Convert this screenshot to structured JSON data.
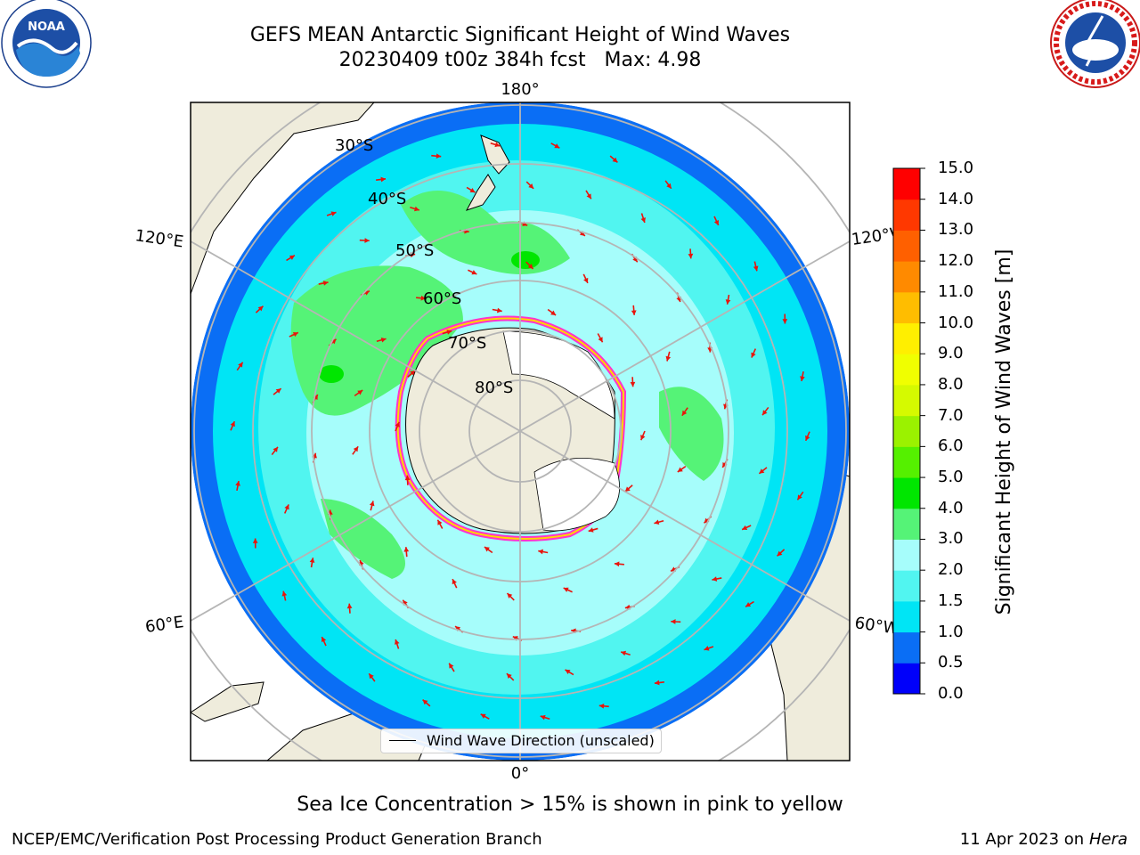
{
  "title": {
    "line1": "GEFS MEAN Antarctic Significant Height of Wind Waves",
    "line2": "20230409 t00z 384h fcst   Max: 4.98"
  },
  "logos": {
    "left": "NOAA",
    "right": "NATIONAL WEATHER SERVICE"
  },
  "map": {
    "longitude_labels": {
      "top": "180°",
      "bottom": "0°",
      "upper_left": "120°E",
      "upper_right": "120°W",
      "lower_left": "60°E",
      "lower_right": "60°W"
    },
    "latitude_labels": [
      "30°S",
      "40°S",
      "50°S",
      "60°S",
      "70°S",
      "80°S"
    ],
    "legend_label": "Wind Wave Direction (unscaled)",
    "land_color": "#efecdc",
    "arrow_color": "#e8140c"
  },
  "colorbar": {
    "label": "Significant Height of Wind Waves [m]",
    "ticks": [
      "0.0",
      "0.5",
      "1.0",
      "1.5",
      "2.0",
      "3.0",
      "4.0",
      "5.0",
      "6.0",
      "7.0",
      "8.0",
      "9.0",
      "10.0",
      "11.0",
      "12.0",
      "13.0",
      "14.0",
      "15.0"
    ],
    "colors": [
      "#0000fa",
      "#0a6ef5",
      "#00e5f5",
      "#51f5f0",
      "#a6fdfb",
      "#55f377",
      "#00e600",
      "#55f000",
      "#9bf200",
      "#d5fa00",
      "#f0ff00",
      "#ffef00",
      "#ffbd00",
      "#ff8a00",
      "#ff6000",
      "#ff3800",
      "#ff0000"
    ]
  },
  "note": "Sea Ice Concentration > 15% is shown in pink to yellow",
  "footer": {
    "left": "NCEP/EMC/Verification Post Processing Product Generation Branch",
    "right_prefix": "11 Apr 2023 on ",
    "right_italic": "Hera"
  }
}
